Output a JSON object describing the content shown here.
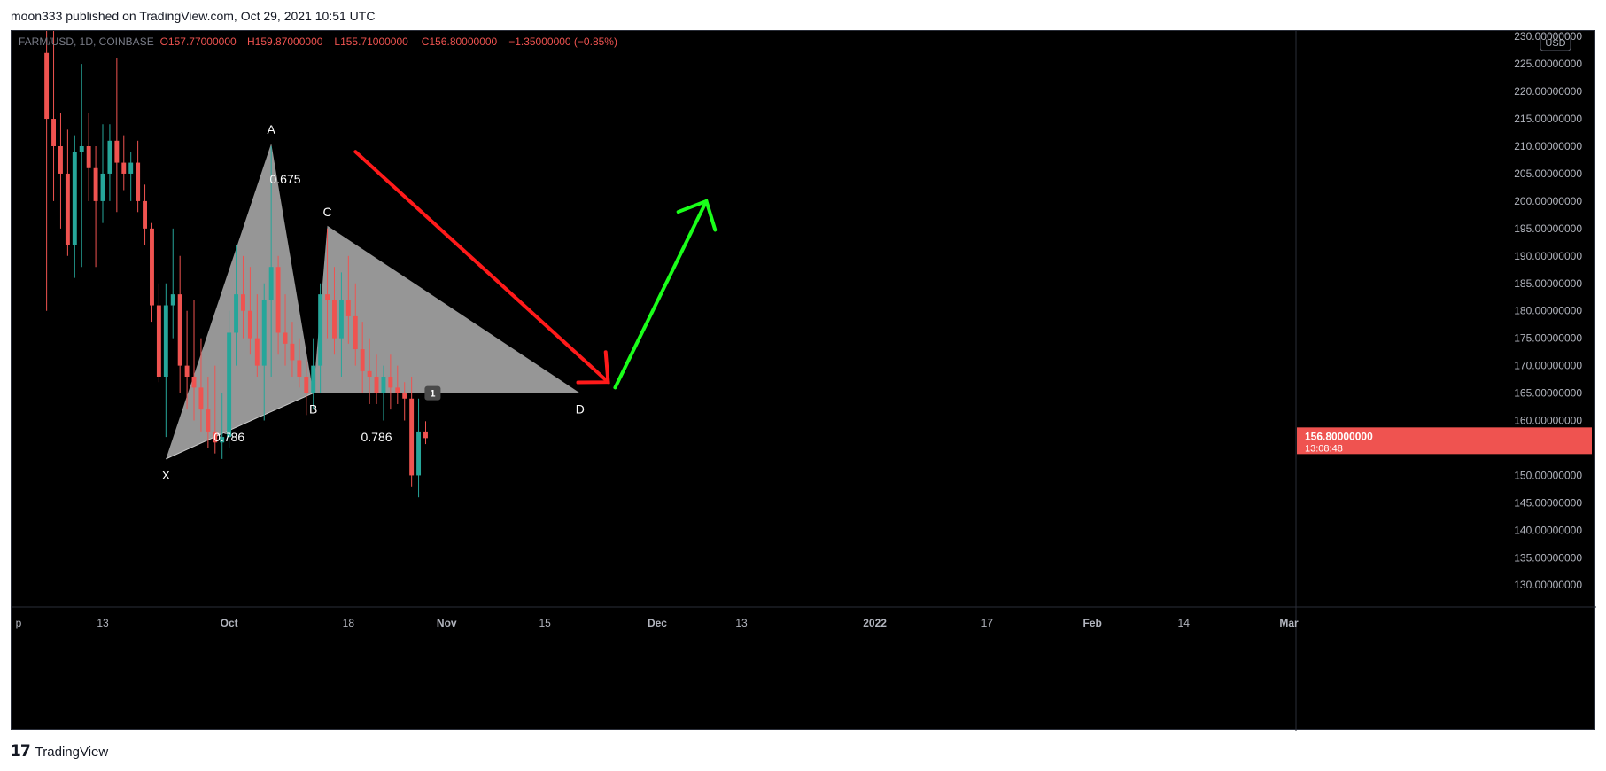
{
  "header": {
    "published": "moon333 published on TradingView.com, Oct 29, 2021 10:51 UTC"
  },
  "footer": {
    "brand": "TradingView"
  },
  "colors": {
    "up": "#26a69a",
    "down": "#ef5350",
    "pattern_fill": "#a6a6a6",
    "arrow_down": "#ff1a1a",
    "arrow_up": "#1aff1a",
    "background": "#000000"
  },
  "chart_data": {
    "type": "candlestick",
    "legend": {
      "symbol": "FARM/USD, 1D, COINBASE",
      "open": "O157.77000000",
      "high": "H159.87000000",
      "low": "L155.71000000",
      "close": "C156.80000000",
      "change": "−1.35000000 (−0.85%)"
    },
    "currency_badge": "USD",
    "y_axis": {
      "min": 126,
      "max": 231,
      "ticks": [
        230,
        225,
        220,
        215,
        210,
        205,
        200,
        195,
        190,
        185,
        180,
        175,
        170,
        165,
        160,
        155,
        150,
        145,
        140,
        135,
        130
      ],
      "tick_labels": [
        "230.00000000",
        "225.00000000",
        "220.00000000",
        "215.00000000",
        "210.00000000",
        "205.00000000",
        "200.00000000",
        "195.00000000",
        "190.00000000",
        "185.00000000",
        "180.00000000",
        "175.00000000",
        "170.00000000",
        "165.00000000",
        "160.00000000",
        "155.00000000",
        "150.00000000",
        "145.00000000",
        "140.00000000",
        "135.00000000",
        "130.00000000"
      ]
    },
    "x_axis": {
      "range_days": [
        "2021-08-31",
        "2022-03-02"
      ],
      "ticks": [
        {
          "label": "p",
          "date": "2021-09-01"
        },
        {
          "label": "13",
          "date": "2021-09-13"
        },
        {
          "label": "Oct",
          "date": "2021-10-01",
          "bold": true
        },
        {
          "label": "18",
          "date": "2021-10-18"
        },
        {
          "label": "Nov",
          "date": "2021-11-01",
          "bold": true
        },
        {
          "label": "15",
          "date": "2021-11-15"
        },
        {
          "label": "Dec",
          "date": "2021-12-01",
          "bold": true
        },
        {
          "label": "13",
          "date": "2021-12-13"
        },
        {
          "label": "2022",
          "date": "2022-01-01",
          "bold": true
        },
        {
          "label": "17",
          "date": "2022-01-17"
        },
        {
          "label": "Feb",
          "date": "2022-02-01",
          "bold": true
        },
        {
          "label": "14",
          "date": "2022-02-14"
        },
        {
          "label": "Mar",
          "date": "2022-03-01",
          "bold": true
        }
      ]
    },
    "last_price": {
      "label": "156.80000000",
      "countdown": "13:08:48",
      "value": 156.8
    },
    "candles": [
      {
        "date": "2021-09-05",
        "o": 227,
        "h": 235,
        "l": 180,
        "c": 215
      },
      {
        "date": "2021-09-06",
        "o": 215,
        "h": 232,
        "l": 200,
        "c": 210
      },
      {
        "date": "2021-09-07",
        "o": 210,
        "h": 216,
        "l": 195,
        "c": 205
      },
      {
        "date": "2021-09-08",
        "o": 205,
        "h": 213,
        "l": 190,
        "c": 192
      },
      {
        "date": "2021-09-09",
        "o": 192,
        "h": 212,
        "l": 186,
        "c": 209
      },
      {
        "date": "2021-09-10",
        "o": 209,
        "h": 225,
        "l": 188,
        "c": 210
      },
      {
        "date": "2021-09-11",
        "o": 210,
        "h": 216,
        "l": 200,
        "c": 206
      },
      {
        "date": "2021-09-12",
        "o": 206,
        "h": 210,
        "l": 188,
        "c": 200
      },
      {
        "date": "2021-09-13",
        "o": 200,
        "h": 214,
        "l": 196,
        "c": 205
      },
      {
        "date": "2021-09-14",
        "o": 205,
        "h": 214,
        "l": 200,
        "c": 211
      },
      {
        "date": "2021-09-15",
        "o": 211,
        "h": 226,
        "l": 198,
        "c": 207
      },
      {
        "date": "2021-09-16",
        "o": 207,
        "h": 212,
        "l": 202,
        "c": 205
      },
      {
        "date": "2021-09-17",
        "o": 205,
        "h": 209,
        "l": 200,
        "c": 207
      },
      {
        "date": "2021-09-18",
        "o": 207,
        "h": 211,
        "l": 198,
        "c": 200
      },
      {
        "date": "2021-09-19",
        "o": 200,
        "h": 203,
        "l": 192,
        "c": 195
      },
      {
        "date": "2021-09-20",
        "o": 195,
        "h": 196,
        "l": 178,
        "c": 181
      },
      {
        "date": "2021-09-21",
        "o": 181,
        "h": 185,
        "l": 167,
        "c": 168
      },
      {
        "date": "2021-09-22",
        "o": 168,
        "h": 185,
        "l": 157,
        "c": 181
      },
      {
        "date": "2021-09-23",
        "o": 181,
        "h": 195,
        "l": 175,
        "c": 183
      },
      {
        "date": "2021-09-24",
        "o": 183,
        "h": 190,
        "l": 165,
        "c": 170
      },
      {
        "date": "2021-09-25",
        "o": 170,
        "h": 180,
        "l": 162,
        "c": 168
      },
      {
        "date": "2021-09-26",
        "o": 168,
        "h": 182,
        "l": 160,
        "c": 166
      },
      {
        "date": "2021-09-27",
        "o": 166,
        "h": 175,
        "l": 158,
        "c": 162
      },
      {
        "date": "2021-09-28",
        "o": 162,
        "h": 168,
        "l": 155,
        "c": 158
      },
      {
        "date": "2021-09-29",
        "o": 158,
        "h": 170,
        "l": 154,
        "c": 156
      },
      {
        "date": "2021-09-30",
        "o": 156,
        "h": 165,
        "l": 153,
        "c": 157
      },
      {
        "date": "2021-10-01",
        "o": 157,
        "h": 180,
        "l": 155,
        "c": 176
      },
      {
        "date": "2021-10-02",
        "o": 176,
        "h": 192,
        "l": 170,
        "c": 183
      },
      {
        "date": "2021-10-03",
        "o": 183,
        "h": 190,
        "l": 175,
        "c": 180
      },
      {
        "date": "2021-10-04",
        "o": 180,
        "h": 188,
        "l": 172,
        "c": 175
      },
      {
        "date": "2021-10-05",
        "o": 175,
        "h": 183,
        "l": 168,
        "c": 170
      },
      {
        "date": "2021-10-06",
        "o": 170,
        "h": 185,
        "l": 160,
        "c": 182
      },
      {
        "date": "2021-10-07",
        "o": 182,
        "h": 210,
        "l": 168,
        "c": 188
      },
      {
        "date": "2021-10-08",
        "o": 188,
        "h": 190,
        "l": 172,
        "c": 176
      },
      {
        "date": "2021-10-09",
        "o": 176,
        "h": 183,
        "l": 170,
        "c": 174
      },
      {
        "date": "2021-10-10",
        "o": 174,
        "h": 178,
        "l": 168,
        "c": 171
      },
      {
        "date": "2021-10-11",
        "o": 171,
        "h": 175,
        "l": 166,
        "c": 168
      },
      {
        "date": "2021-10-12",
        "o": 168,
        "h": 171,
        "l": 161,
        "c": 165
      },
      {
        "date": "2021-10-13",
        "o": 165,
        "h": 175,
        "l": 162,
        "c": 170
      },
      {
        "date": "2021-10-14",
        "o": 170,
        "h": 185,
        "l": 165,
        "c": 183
      },
      {
        "date": "2021-10-15",
        "o": 183,
        "h": 195,
        "l": 175,
        "c": 182
      },
      {
        "date": "2021-10-16",
        "o": 182,
        "h": 188,
        "l": 172,
        "c": 175
      },
      {
        "date": "2021-10-17",
        "o": 175,
        "h": 187,
        "l": 168,
        "c": 182
      },
      {
        "date": "2021-10-18",
        "o": 182,
        "h": 190,
        "l": 174,
        "c": 179
      },
      {
        "date": "2021-10-19",
        "o": 179,
        "h": 185,
        "l": 170,
        "c": 173
      },
      {
        "date": "2021-10-20",
        "o": 173,
        "h": 178,
        "l": 165,
        "c": 169
      },
      {
        "date": "2021-10-21",
        "o": 169,
        "h": 175,
        "l": 163,
        "c": 168
      },
      {
        "date": "2021-10-22",
        "o": 168,
        "h": 172,
        "l": 163,
        "c": 165
      },
      {
        "date": "2021-10-23",
        "o": 165,
        "h": 170,
        "l": 160,
        "c": 168
      },
      {
        "date": "2021-10-24",
        "o": 168,
        "h": 172,
        "l": 162,
        "c": 166
      },
      {
        "date": "2021-10-25",
        "o": 166,
        "h": 170,
        "l": 163,
        "c": 165
      },
      {
        "date": "2021-10-26",
        "o": 165,
        "h": 167,
        "l": 160,
        "c": 164
      },
      {
        "date": "2021-10-27",
        "o": 164,
        "h": 168,
        "l": 148,
        "c": 150
      },
      {
        "date": "2021-10-28",
        "o": 150,
        "h": 164,
        "l": 146,
        "c": 158
      },
      {
        "date": "2021-10-29",
        "o": 158,
        "h": 159.87,
        "l": 155.71,
        "c": 156.8
      }
    ],
    "pattern": {
      "points": [
        {
          "label": "X",
          "date": "2021-09-22",
          "price": 153
        },
        {
          "label": "A",
          "date": "2021-10-07",
          "price": 210.5
        },
        {
          "label": "B",
          "date": "2021-10-13",
          "price": 165
        },
        {
          "label": "C",
          "date": "2021-10-15",
          "price": 195.5
        },
        {
          "label": "D",
          "date": "2021-11-20",
          "price": 165
        }
      ],
      "ratios": [
        {
          "text": "0.675",
          "date": "2021-10-09",
          "price": 204
        },
        {
          "text": "0.786",
          "date": "2021-10-01",
          "price": 157
        },
        {
          "text": "0.786",
          "date": "2021-10-22",
          "price": 157
        }
      ],
      "xb_anchor": {
        "date": "2021-10-05",
        "price": 160.5
      },
      "marker": {
        "text": "1",
        "date": "2021-10-30",
        "price": 165
      }
    },
    "arrows": [
      {
        "name": "down-arrow",
        "from": {
          "date": "2021-10-19",
          "price": 209
        },
        "to": {
          "date": "2021-11-24",
          "price": 167
        }
      },
      {
        "name": "up-arrow",
        "from": {
          "date": "2021-11-25",
          "price": 166
        },
        "to": {
          "date": "2021-12-08",
          "price": 200
        }
      }
    ]
  }
}
